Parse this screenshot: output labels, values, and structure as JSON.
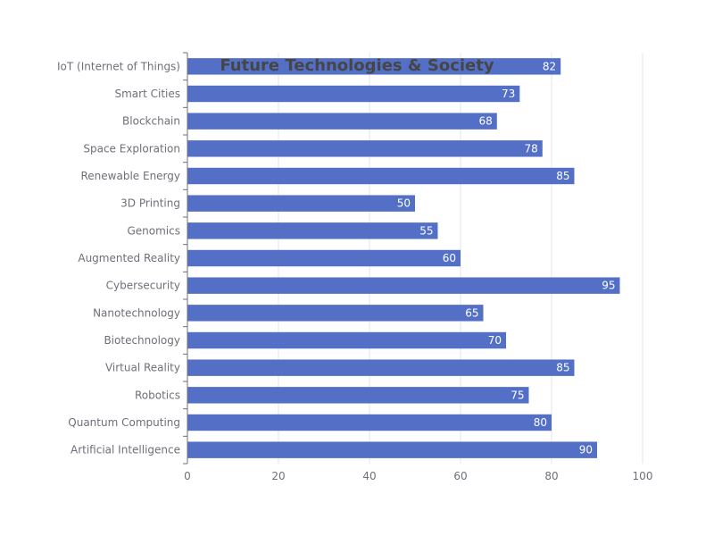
{
  "chart_data": {
    "type": "bar",
    "orientation": "horizontal",
    "title": "Future Technologies & Society",
    "xlabel": "",
    "ylabel": "",
    "categories": [
      "Artificial Intelligence",
      "Quantum Computing",
      "Robotics",
      "Virtual Reality",
      "Biotechnology",
      "Nanotechnology",
      "Cybersecurity",
      "Augmented Reality",
      "Genomics",
      "3D Printing",
      "Renewable Energy",
      "Space Exploration",
      "Blockchain",
      "Smart Cities",
      "IoT (Internet of Things)"
    ],
    "values": [
      90,
      80,
      75,
      85,
      70,
      65,
      95,
      60,
      55,
      50,
      85,
      78,
      68,
      73,
      82
    ],
    "xlim": [
      0,
      100
    ],
    "xticks": [
      0,
      20,
      40,
      60,
      80,
      100
    ],
    "grid": true,
    "data_labels": true,
    "colors": {
      "bar": "#5470c6",
      "grid": "#e0e6f1",
      "axis": "#6e7079",
      "label": "#6e7079",
      "title": "#464646",
      "data_label": "#ffffff"
    }
  }
}
